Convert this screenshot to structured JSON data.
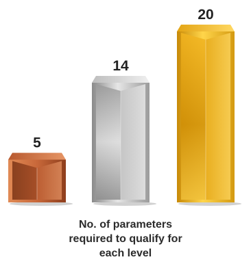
{
  "chart_data": {
    "type": "bar",
    "categories": [
      "",
      "",
      ""
    ],
    "values": [
      5,
      14,
      20
    ],
    "data_labels": [
      "5",
      "14",
      "20"
    ],
    "ylim": [
      0,
      20
    ],
    "grid": false,
    "legend": "none",
    "colors": [
      "#c8683a",
      "#a9a9a9",
      "#e0a414"
    ],
    "caption_lines": [
      "No. of parameters",
      "required to qualify for",
      "each level"
    ]
  }
}
